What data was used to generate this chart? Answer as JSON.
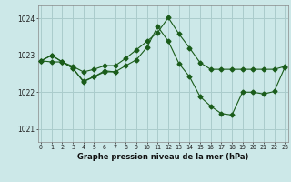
{
  "title": "Graphe pression niveau de la mer (hPa)",
  "background_color": "#cce8e8",
  "grid_color": "#aacccc",
  "line_color": "#1a5c1a",
  "ylim": [
    1020.65,
    1024.35
  ],
  "xlim": [
    -0.3,
    23.3
  ],
  "yticks": [
    1021,
    1022,
    1023,
    1024
  ],
  "xticks": [
    0,
    1,
    2,
    3,
    4,
    5,
    6,
    7,
    8,
    9,
    10,
    11,
    12,
    13,
    14,
    15,
    16,
    17,
    18,
    19,
    20,
    21,
    22,
    23
  ],
  "series1_x": [
    0,
    1,
    2,
    3,
    4,
    5,
    6,
    7,
    8,
    9,
    10,
    11,
    12,
    13,
    14,
    15,
    16,
    17,
    18,
    19,
    20,
    21,
    22,
    23
  ],
  "series1_y": [
    1022.85,
    1023.0,
    1022.82,
    1022.7,
    1022.55,
    1022.62,
    1022.72,
    1022.72,
    1022.92,
    1023.15,
    1023.38,
    1023.62,
    1024.02,
    1023.58,
    1023.2,
    1022.8,
    1022.62,
    1022.62,
    1022.62,
    1022.62,
    1022.62,
    1022.62,
    1022.62,
    1022.7
  ],
  "series2_x": [
    0,
    1,
    2,
    3,
    4,
    5,
    6,
    7,
    8,
    9,
    10,
    11,
    12,
    13,
    14,
    15,
    16,
    17,
    18,
    19,
    20,
    21,
    22,
    23
  ],
  "series2_y": [
    1022.85,
    1023.0,
    1022.82,
    1022.65,
    1022.3,
    1022.42,
    1022.55,
    1022.55,
    1022.72,
    1022.88,
    1023.22,
    1023.78,
    1023.38,
    1022.78,
    1022.42,
    1021.88,
    1021.62,
    1021.42,
    1021.38,
    1022.0,
    1022.0,
    1021.95,
    1022.02,
    1022.68
  ],
  "series3_x": [
    0,
    1,
    2,
    3,
    4,
    5,
    6,
    7
  ],
  "series3_y": [
    1022.85,
    1022.82,
    1022.82,
    1022.65,
    1022.28,
    1022.42,
    1022.58,
    1022.55
  ]
}
